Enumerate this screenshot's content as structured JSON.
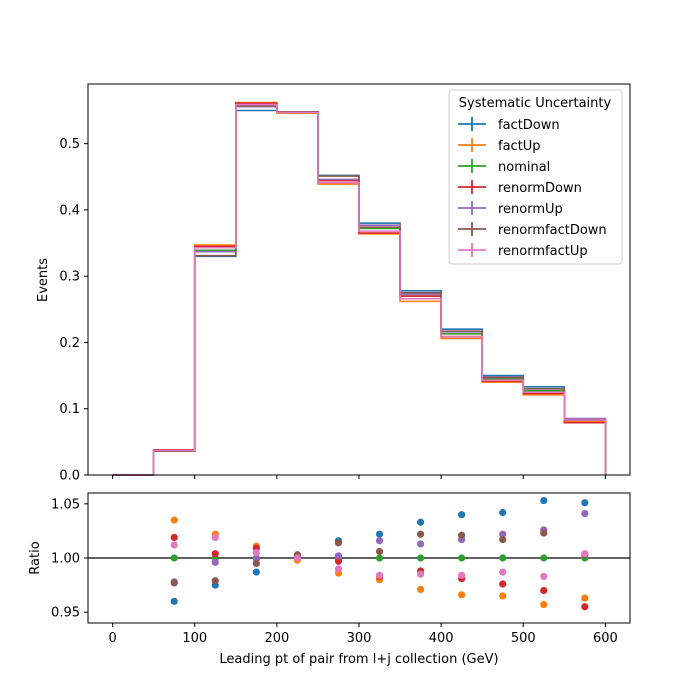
{
  "chart_data": [
    {
      "type": "step",
      "xlabel": "",
      "ylabel": "Events",
      "xlim": [
        -30,
        630
      ],
      "ylim": [
        0,
        0.59
      ],
      "bin_edges": [
        0,
        50,
        100,
        150,
        200,
        250,
        300,
        350,
        400,
        450,
        500,
        550,
        600
      ],
      "yticks": [
        0.0,
        0.1,
        0.2,
        0.3,
        0.4,
        0.5
      ],
      "ytick_labels": [
        "0.0",
        "0.1",
        "0.2",
        "0.3",
        "0.4",
        "0.5"
      ],
      "legend": {
        "title": "Systematic Uncertainty",
        "placement": "top-right"
      },
      "series": [
        {
          "name": "factDown",
          "color": "#1f77b4",
          "values": [
            0.0,
            0.036,
            0.33,
            0.55,
            0.548,
            0.452,
            0.38,
            0.278,
            0.22,
            0.15,
            0.133,
            0.085
          ]
        },
        {
          "name": "factUp",
          "color": "#ff7f0e",
          "values": [
            0.0,
            0.038,
            0.347,
            0.562,
            0.546,
            0.439,
            0.364,
            0.262,
            0.206,
            0.14,
            0.121,
            0.081
          ]
        },
        {
          "name": "nominal",
          "color": "#2ca02c",
          "values": [
            0.0,
            0.037,
            0.339,
            0.556,
            0.547,
            0.445,
            0.372,
            0.27,
            0.213,
            0.145,
            0.127,
            0.083
          ]
        },
        {
          "name": "renormDown",
          "color": "#d62728",
          "values": [
            0.0,
            0.038,
            0.345,
            0.561,
            0.548,
            0.444,
            0.365,
            0.27,
            0.209,
            0.142,
            0.123,
            0.079
          ]
        },
        {
          "name": "renormUp",
          "color": "#9467bd",
          "values": [
            0.0,
            0.036,
            0.337,
            0.556,
            0.548,
            0.446,
            0.377,
            0.273,
            0.216,
            0.148,
            0.13,
            0.085
          ]
        },
        {
          "name": "renormfactDown",
          "color": "#8c564b",
          "values": [
            0.0,
            0.036,
            0.331,
            0.557,
            0.548,
            0.451,
            0.374,
            0.275,
            0.217,
            0.147,
            0.13,
            0.083
          ]
        },
        {
          "name": "renormfactUp",
          "color": "#e377c2",
          "values": [
            0.0,
            0.037,
            0.343,
            0.559,
            0.547,
            0.441,
            0.368,
            0.266,
            0.209,
            0.143,
            0.125,
            0.083
          ]
        }
      ]
    },
    {
      "type": "scatter",
      "xlabel": "Leading pt of pair from l+j collection (GeV)",
      "ylabel": "Ratio",
      "xlim": [
        -30,
        630
      ],
      "ylim": [
        0.94,
        1.06
      ],
      "xticks": [
        0,
        100,
        200,
        300,
        400,
        500,
        600
      ],
      "xtick_labels": [
        "0",
        "100",
        "200",
        "300",
        "400",
        "500",
        "600"
      ],
      "yticks": [
        0.95,
        1.0,
        1.05
      ],
      "ytick_labels": [
        "0.95",
        "1.00",
        "1.05"
      ],
      "reference_line": 1.0,
      "x": [
        75,
        125,
        175,
        225,
        275,
        325,
        375,
        425,
        475,
        525,
        575
      ],
      "series": [
        {
          "name": "factDown",
          "color": "#1f77b4",
          "values": [
            0.96,
            0.975,
            0.987,
            1.002,
            1.016,
            1.022,
            1.033,
            1.04,
            1.042,
            1.053,
            1.051
          ]
        },
        {
          "name": "factUp",
          "color": "#ff7f0e",
          "values": [
            1.035,
            1.022,
            1.011,
            0.998,
            0.986,
            0.98,
            0.971,
            0.966,
            0.965,
            0.957,
            0.963
          ]
        },
        {
          "name": "nominal",
          "color": "#2ca02c",
          "values": [
            1.0,
            1.0,
            1.0,
            1.0,
            1.0,
            1.0,
            1.0,
            1.0,
            1.0,
            1.0,
            1.0
          ]
        },
        {
          "name": "renormDown",
          "color": "#d62728",
          "values": [
            1.019,
            1.004,
            1.009,
            1.002,
            0.997,
            0.983,
            0.988,
            0.981,
            0.976,
            0.97,
            0.955
          ]
        },
        {
          "name": "renormUp",
          "color": "#9467bd",
          "values": [
            0.978,
            0.996,
            0.999,
            1.002,
            1.002,
            1.016,
            1.013,
            1.017,
            1.022,
            1.026,
            1.041
          ]
        },
        {
          "name": "renormfactDown",
          "color": "#8c564b",
          "values": [
            0.977,
            0.979,
            0.995,
            1.003,
            1.014,
            1.006,
            1.022,
            1.021,
            1.017,
            1.023,
            1.003
          ]
        },
        {
          "name": "renormfactUp",
          "color": "#e377c2",
          "values": [
            1.012,
            1.019,
            1.005,
            1.0,
            0.99,
            0.984,
            0.985,
            0.984,
            0.987,
            0.983,
            1.004
          ]
        }
      ]
    }
  ]
}
